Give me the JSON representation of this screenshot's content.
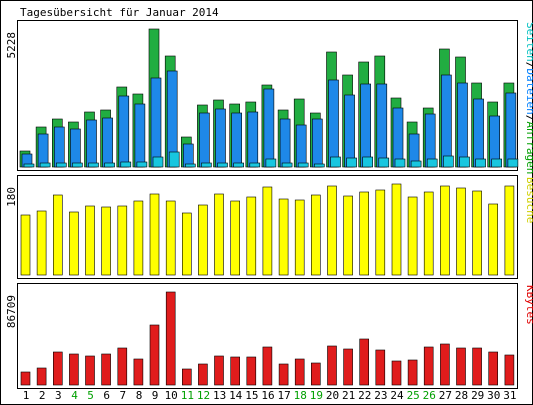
{
  "chart_data": {
    "type": "bar",
    "title": "Tagesübersicht für Januar 2014",
    "categories": [
      "1",
      "2",
      "3",
      "4",
      "5",
      "6",
      "7",
      "8",
      "9",
      "10",
      "11",
      "12",
      "13",
      "14",
      "15",
      "16",
      "17",
      "18",
      "19",
      "20",
      "21",
      "22",
      "23",
      "24",
      "25",
      "26",
      "27",
      "28",
      "29",
      "30",
      "31"
    ],
    "weekend_days": [
      "4",
      "5",
      "11",
      "12",
      "18",
      "19",
      "25",
      "26"
    ],
    "weekend_color": "#00a000",
    "panels": [
      {
        "id": "requests",
        "ymax_label": "5228",
        "ymax": 5228,
        "legend": [
          {
            "text": "Seiten",
            "color": "#00c0c0"
          },
          {
            "text": "/",
            "color": "#000000"
          },
          {
            "text": "Dateien",
            "color": "#0080ff"
          },
          {
            "text": "/",
            "color": "#000000"
          },
          {
            "text": "Anfragen",
            "color": "#00a000"
          }
        ],
        "series": [
          {
            "name": "Anfragen",
            "color": "#21ad41",
            "values": [
              620,
              1520,
              1810,
              1690,
              2080,
              2150,
              3030,
              2770,
              5228,
              4200,
              1120,
              2360,
              2550,
              2370,
              2470,
              3090,
              2160,
              2580,
              2040,
              4340,
              3480,
              3960,
              4210,
              2610,
              1700,
              2250,
              4480,
              4150,
              3200,
              2450,
              3190
            ]
          },
          {
            "name": "Dateien",
            "color": "#1e88e8",
            "values": [
              480,
              1260,
              1520,
              1430,
              1790,
              1850,
              2700,
              2380,
              3360,
              3630,
              880,
              2030,
              2210,
              2060,
              2100,
              2940,
              1830,
              1580,
              1800,
              3310,
              2740,
              3140,
              3160,
              2240,
              1260,
              1990,
              3480,
              3170,
              2560,
              1940,
              2790
            ]
          },
          {
            "name": "Seiten",
            "color": "#18c6df",
            "values": [
              120,
              170,
              170,
              170,
              160,
              170,
              190,
              200,
              390,
              570,
              120,
              170,
              150,
              150,
              150,
              290,
              150,
              140,
              110,
              380,
              330,
              380,
              350,
              300,
              240,
              290,
              420,
              380,
              320,
              290,
              320
            ]
          }
        ]
      },
      {
        "id": "visits",
        "ymax_label": "180",
        "ymax": 180,
        "legend": [
          {
            "text": "Besuche",
            "color": "#d0d000"
          }
        ],
        "series": [
          {
            "name": "Besuche",
            "color": "#ffff00",
            "values": [
              119,
              126,
              158,
              125,
              137,
              135,
              137,
              147,
              160,
              146,
              122,
              139,
              161,
              147,
              155,
              175,
              151,
              149,
              159,
              177,
              157,
              164,
              168,
              180,
              154,
              164,
              177,
              172,
              167,
              141,
              177
            ]
          }
        ]
      },
      {
        "id": "kbytes",
        "ymax_label": "86709",
        "ymax": 86709,
        "legend": [
          {
            "text": "KBytes",
            "color": "#e00000"
          }
        ],
        "series": [
          {
            "name": "KBytes",
            "color": "#e01c1c",
            "values": [
              11700,
              15400,
              30500,
              28900,
              26800,
              29000,
              34200,
              24700,
              55800,
              86709,
              15100,
              19700,
              26900,
              25800,
              25800,
              35200,
              20000,
              24700,
              20200,
              36800,
              33900,
              42600,
              32800,
              22000,
              22900,
              35200,
              38600,
              34900,
              34900,
              30700,
              28400
            ]
          }
        ]
      }
    ]
  }
}
